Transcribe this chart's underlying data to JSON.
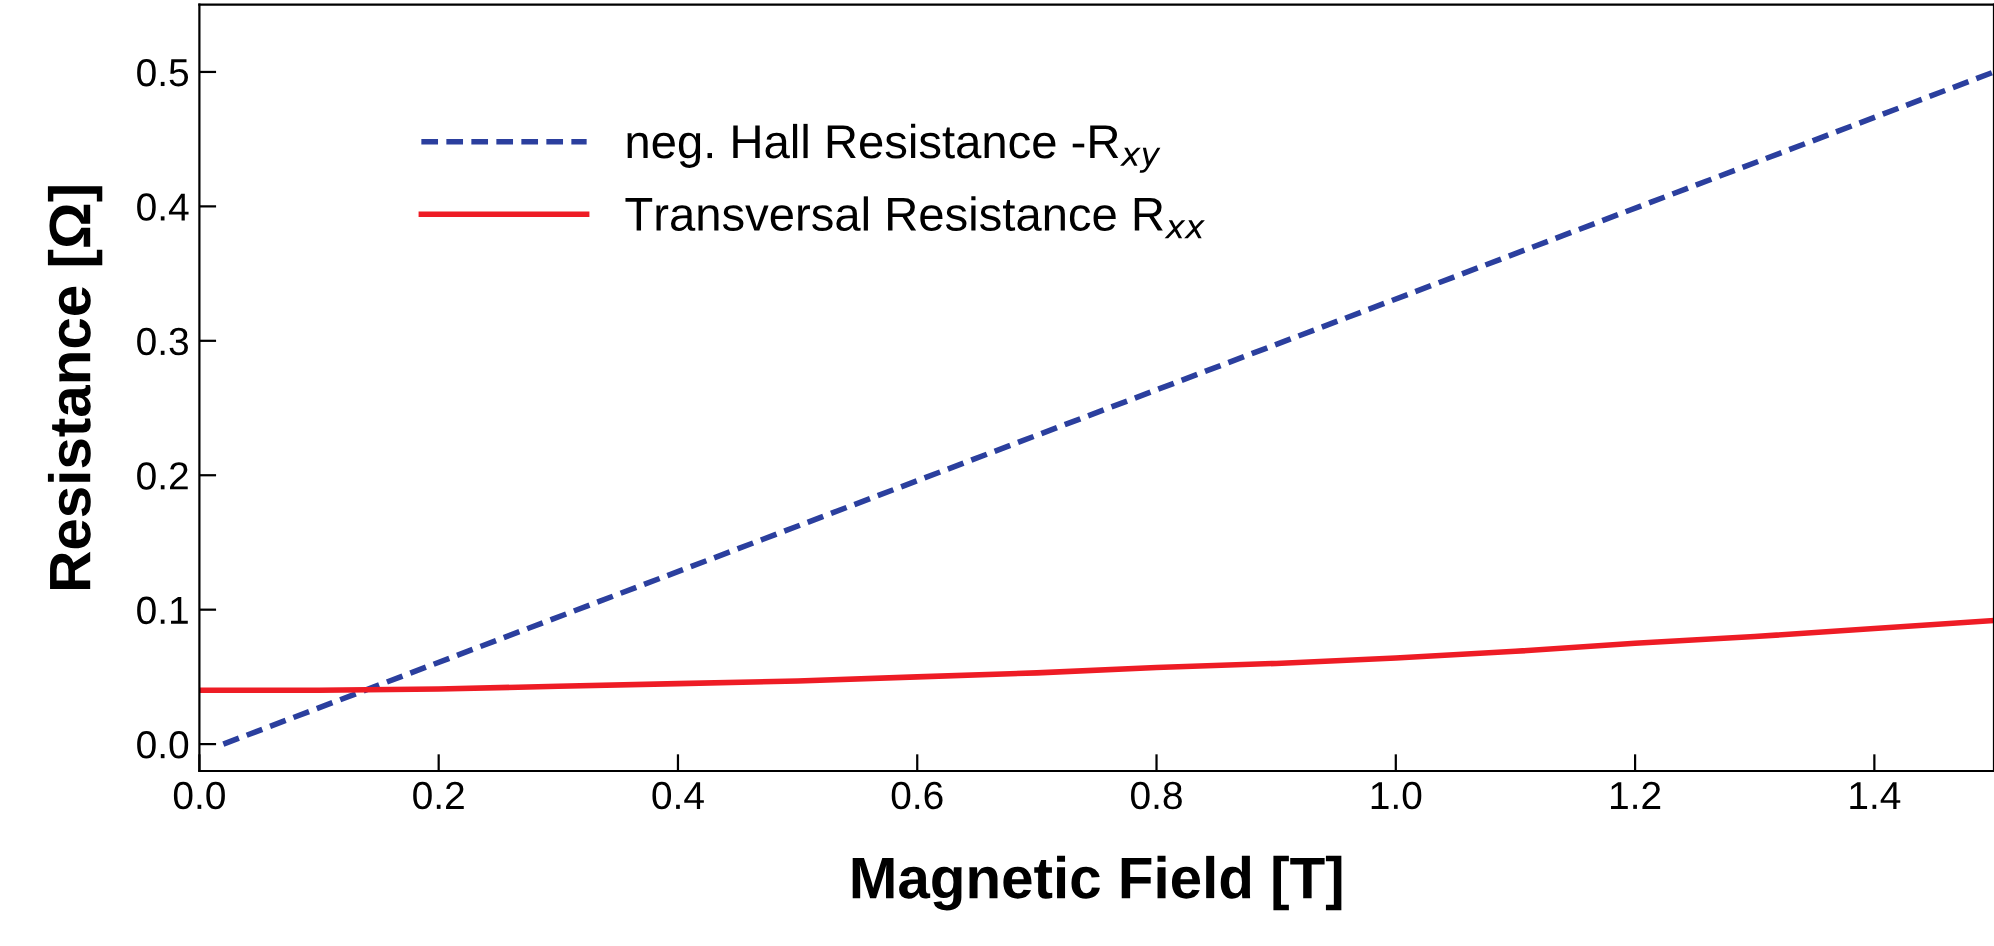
{
  "chart_data": {
    "type": "line",
    "xlabel": "Magnetic Field [T]",
    "ylabel": "Resistance [Ω]",
    "x": [
      0,
      0.1,
      0.2,
      0.3,
      0.4,
      0.5,
      0.6,
      0.7,
      0.8,
      0.9,
      1.0,
      1.1,
      1.2,
      1.3,
      1.4,
      1.5
    ],
    "series": [
      {
        "name": "neg. Hall Resistance -R$_{xy}$",
        "color": "#2b3f9e",
        "line_style": "dashed",
        "x": [
          0.02,
          1.5
        ],
        "values": [
          0.0,
          0.5
        ]
      },
      {
        "name": "Transversal Resistance R$_{xx}$",
        "color": "#ee1c25",
        "line_style": "solid",
        "values": [
          0.04,
          0.04,
          0.041,
          0.043,
          0.045,
          0.047,
          0.05,
          0.053,
          0.057,
          0.06,
          0.064,
          0.069,
          0.075,
          0.08,
          0.086,
          0.092
        ]
      }
    ],
    "xlim": [
      0,
      1.5
    ],
    "ylim": [
      -0.02,
      0.55
    ],
    "xticks": [
      {
        "value": 0,
        "label": "0.0"
      },
      {
        "value": 0.2,
        "label": "0.2"
      },
      {
        "value": 0.4,
        "label": "0.4"
      },
      {
        "value": 0.6,
        "label": "0.6"
      },
      {
        "value": 0.8,
        "label": "0.8"
      },
      {
        "value": 1.0,
        "label": "1.0"
      },
      {
        "value": 1.2,
        "label": "1.2"
      },
      {
        "value": 1.4,
        "label": "1.4"
      }
    ],
    "yticks": [
      {
        "value": 0,
        "label": "0.0"
      },
      {
        "value": 0.1,
        "label": "0.1"
      },
      {
        "value": 0.2,
        "label": "0.2"
      },
      {
        "value": 0.3,
        "label": "0.3"
      },
      {
        "value": 0.4,
        "label": "0.4"
      },
      {
        "value": 0.5,
        "label": "0.5"
      }
    ],
    "legend": "top left",
    "grid": false
  }
}
